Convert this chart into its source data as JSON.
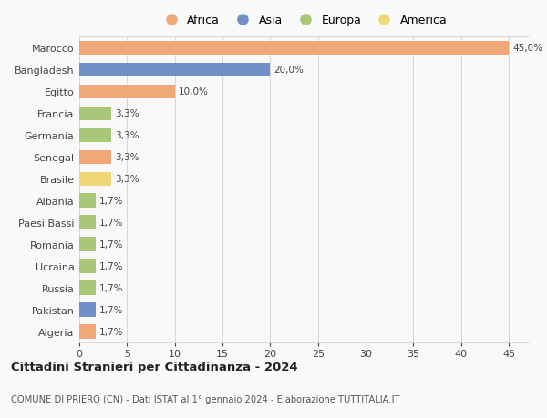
{
  "countries": [
    "Marocco",
    "Bangladesh",
    "Egitto",
    "Francia",
    "Germania",
    "Senegal",
    "Brasile",
    "Albania",
    "Paesi Bassi",
    "Romania",
    "Ucraina",
    "Russia",
    "Pakistan",
    "Algeria"
  ],
  "values": [
    45.0,
    20.0,
    10.0,
    3.3,
    3.3,
    3.3,
    3.3,
    1.7,
    1.7,
    1.7,
    1.7,
    1.7,
    1.7,
    1.7
  ],
  "labels": [
    "45,0%",
    "20,0%",
    "10,0%",
    "3,3%",
    "3,3%",
    "3,3%",
    "3,3%",
    "1,7%",
    "1,7%",
    "1,7%",
    "1,7%",
    "1,7%",
    "1,7%",
    "1,7%"
  ],
  "continents": [
    "Africa",
    "Asia",
    "Africa",
    "Europa",
    "Europa",
    "Africa",
    "America",
    "Europa",
    "Europa",
    "Europa",
    "Europa",
    "Europa",
    "Asia",
    "Africa"
  ],
  "colors": {
    "Africa": "#F0A878",
    "Asia": "#7090C8",
    "Europa": "#A8C878",
    "America": "#F0D878"
  },
  "legend_order": [
    "Africa",
    "Asia",
    "Europa",
    "America"
  ],
  "legend_colors": [
    "#F0A878",
    "#7090C8",
    "#A8C878",
    "#F0D878"
  ],
  "xlim": [
    0,
    47
  ],
  "xticks": [
    0,
    5,
    10,
    15,
    20,
    25,
    30,
    35,
    40,
    45
  ],
  "title": "Cittadini Stranieri per Cittadinanza - 2024",
  "subtitle": "COMUNE DI PRIERO (CN) - Dati ISTAT al 1° gennaio 2024 - Elaborazione TUTTITALIA.IT",
  "background_color": "#f9f9f9",
  "grid_color": "#d8d8d8",
  "bar_height": 0.65
}
